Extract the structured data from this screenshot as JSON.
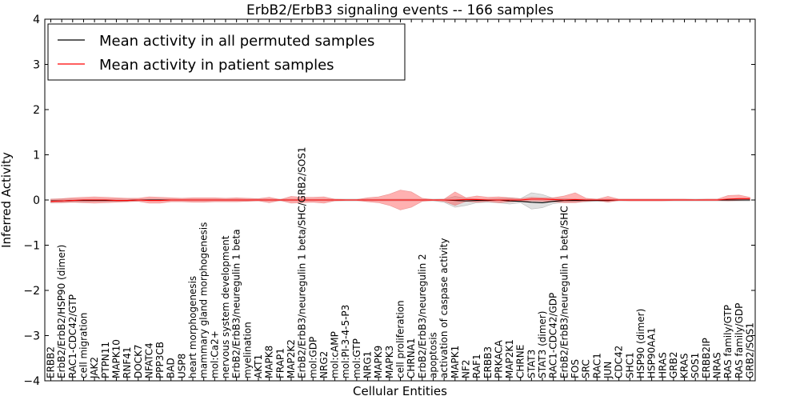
{
  "chart_data": {
    "type": "line",
    "title": "ErbB2/ErbB3 signaling events -- 166 samples",
    "xlabel": "Cellular Entities",
    "ylabel": "Inferred Activity",
    "ylim": [
      -4,
      4
    ],
    "yticks": [
      -4,
      -3,
      -2,
      -1,
      0,
      1,
      2,
      3,
      4
    ],
    "ytick_labels": [
      "−4",
      "−3",
      "−2",
      "−1",
      "0",
      "1",
      "2",
      "3",
      "4"
    ],
    "grid": false,
    "legend_position": "top-left",
    "categories": [
      "ERBB2",
      "ErbB2/ErbB2/HSP90 (dimer)",
      "RAC1-CDC42/GTP",
      "cell migration",
      "JAK2",
      "PTPN11",
      "MAPK10",
      "RNF41",
      "DOCK7",
      "NFATC4",
      "PPP3CB",
      "BAD",
      "USP8",
      "heart morphogenesis",
      "mammary gland morphogenesis",
      "mol:Ca2+",
      "nervous system development",
      "ErbB2/ErbB3/neuregulin 1 beta",
      "myelination",
      "AKT1",
      "MAPK8",
      "FRAP1",
      "MAP2K2",
      "ErbB2/ErbB3/neuregulin 1 beta/SHC/GRB2/SOS1",
      "mol:GDP",
      "NRG2",
      "mol:cAMP",
      "mol:PI-3-4-5-P3",
      "mol:GTP",
      "NRG1",
      "MAPK9",
      "MAPK3",
      "cell proliferation",
      "CHRNA1",
      "ErbB2/ErbB3/neuregulin 2",
      "apoptosis",
      "activation of caspase activity",
      "MAPK1",
      "NF2",
      "RAF1",
      "ERBB3",
      "PRKACA",
      "MAP2K1",
      "CHRNE",
      "STAT3",
      "STAT3 (dimer)",
      "RAC1-CDC42/GDP",
      "ErbB2/ErbB3/neuregulin 1 beta/SHC",
      "FOS",
      "SRC",
      "RAC1",
      "JUN",
      "CDC42",
      "SHC1",
      "HSP90 (dimer)",
      "HSP90AA1",
      "HRAS",
      "GRB2",
      "KRAS",
      "SOS1",
      "ERBB2IP",
      "NRAS",
      "RAS family/GTP",
      "RAS family/GDP",
      "GRB2/SOS1"
    ],
    "series": [
      {
        "name": "Mean activity in all permuted samples",
        "color": "#000000",
        "values": [
          -0.02,
          -0.02,
          -0.01,
          -0.01,
          -0.01,
          -0.01,
          -0.01,
          -0.01,
          0.0,
          0.0,
          0.0,
          0.0,
          0.0,
          0.0,
          0.0,
          0.0,
          0.0,
          0.0,
          0.0,
          0.0,
          0.0,
          0.0,
          0.0,
          0.0,
          0.0,
          0.0,
          0.0,
          0.0,
          0.0,
          0.0,
          0.0,
          0.0,
          0.0,
          0.0,
          0.0,
          0.0,
          0.0,
          -0.01,
          -0.02,
          -0.01,
          -0.01,
          0.0,
          -0.02,
          -0.03,
          -0.05,
          -0.06,
          -0.03,
          -0.01,
          -0.01,
          -0.01,
          -0.01,
          -0.01,
          0.0,
          0.0,
          0.0,
          0.0,
          0.0,
          0.0,
          0.0,
          0.0,
          0.0,
          0.0,
          0.0,
          0.0,
          0.0
        ],
        "lower": [
          -0.06,
          -0.05,
          -0.04,
          -0.04,
          -0.03,
          -0.03,
          -0.03,
          -0.03,
          -0.02,
          -0.02,
          -0.02,
          -0.02,
          -0.02,
          -0.02,
          -0.02,
          -0.02,
          -0.02,
          -0.02,
          -0.02,
          -0.02,
          -0.02,
          -0.02,
          -0.02,
          -0.02,
          -0.02,
          -0.02,
          -0.02,
          -0.02,
          -0.02,
          -0.02,
          -0.02,
          -0.02,
          -0.02,
          -0.02,
          -0.02,
          -0.02,
          -0.05,
          -0.16,
          -0.12,
          -0.06,
          -0.05,
          -0.06,
          -0.09,
          -0.06,
          -0.2,
          -0.17,
          -0.08,
          -0.05,
          -0.04,
          -0.04,
          -0.03,
          -0.03,
          -0.02,
          -0.02,
          -0.02,
          -0.02,
          -0.02,
          -0.02,
          -0.02,
          -0.02,
          -0.02,
          -0.02,
          -0.02,
          -0.02,
          -0.02
        ],
        "upper": [
          0.02,
          0.02,
          0.02,
          0.02,
          0.02,
          0.02,
          0.02,
          0.02,
          0.02,
          0.02,
          0.02,
          0.02,
          0.02,
          0.02,
          0.02,
          0.02,
          0.02,
          0.02,
          0.02,
          0.02,
          0.02,
          0.02,
          0.02,
          0.02,
          0.02,
          0.02,
          0.02,
          0.02,
          0.02,
          0.02,
          0.02,
          0.02,
          0.02,
          0.02,
          0.02,
          0.02,
          0.02,
          0.08,
          0.04,
          0.02,
          0.02,
          0.03,
          0.05,
          0.03,
          0.16,
          0.12,
          0.04,
          0.03,
          0.02,
          0.02,
          0.02,
          0.02,
          0.02,
          0.02,
          0.02,
          0.02,
          0.02,
          0.02,
          0.02,
          0.02,
          0.02,
          0.02,
          0.02,
          0.02,
          0.02
        ]
      },
      {
        "name": "Mean activity in patient samples",
        "color": "#ff0000",
        "values": [
          -0.03,
          -0.02,
          -0.01,
          0.0,
          0.0,
          0.0,
          -0.01,
          -0.01,
          0.0,
          -0.01,
          -0.01,
          0.0,
          0.0,
          0.0,
          0.0,
          0.0,
          0.0,
          0.0,
          0.0,
          0.0,
          0.0,
          0.0,
          0.0,
          0.0,
          0.0,
          0.0,
          0.0,
          0.0,
          0.0,
          0.0,
          0.0,
          0.0,
          0.0,
          0.0,
          0.0,
          0.0,
          0.0,
          0.0,
          0.01,
          0.01,
          0.0,
          0.0,
          0.0,
          0.0,
          0.02,
          0.02,
          0.01,
          0.0,
          0.01,
          0.0,
          0.0,
          0.0,
          0.0,
          0.0,
          0.0,
          0.0,
          0.0,
          0.0,
          0.0,
          0.0,
          0.0,
          0.0,
          0.02,
          0.03,
          0.03
        ],
        "lower": [
          -0.06,
          -0.06,
          -0.05,
          -0.06,
          -0.07,
          -0.06,
          -0.05,
          -0.04,
          -0.03,
          -0.07,
          -0.07,
          -0.04,
          -0.04,
          -0.05,
          -0.05,
          -0.04,
          -0.04,
          -0.04,
          -0.03,
          -0.02,
          -0.06,
          -0.01,
          -0.07,
          -0.06,
          -0.05,
          -0.07,
          -0.02,
          -0.01,
          -0.01,
          -0.04,
          -0.06,
          -0.12,
          -0.22,
          -0.16,
          -0.03,
          -0.01,
          -0.03,
          -0.12,
          -0.03,
          -0.05,
          -0.03,
          -0.06,
          -0.04,
          -0.03,
          -0.02,
          -0.03,
          -0.04,
          -0.06,
          -0.06,
          -0.03,
          -0.01,
          -0.05,
          -0.01,
          -0.02,
          -0.02,
          -0.02,
          -0.02,
          -0.01,
          -0.01,
          -0.01,
          -0.01,
          -0.01,
          -0.02,
          -0.01,
          0.0
        ],
        "upper": [
          0.02,
          0.03,
          0.05,
          0.06,
          0.07,
          0.06,
          0.05,
          0.04,
          0.04,
          0.07,
          0.06,
          0.05,
          0.04,
          0.05,
          0.05,
          0.05,
          0.04,
          0.05,
          0.04,
          0.03,
          0.06,
          0.01,
          0.08,
          0.06,
          0.06,
          0.07,
          0.02,
          0.01,
          0.01,
          0.05,
          0.07,
          0.13,
          0.22,
          0.18,
          0.04,
          0.01,
          0.02,
          0.18,
          0.05,
          0.09,
          0.06,
          0.07,
          0.05,
          0.03,
          0.06,
          0.05,
          0.05,
          0.09,
          0.16,
          0.04,
          0.02,
          0.08,
          0.02,
          0.02,
          0.02,
          0.02,
          0.02,
          0.02,
          0.02,
          0.01,
          0.02,
          0.02,
          0.1,
          0.11,
          0.06
        ]
      }
    ]
  }
}
